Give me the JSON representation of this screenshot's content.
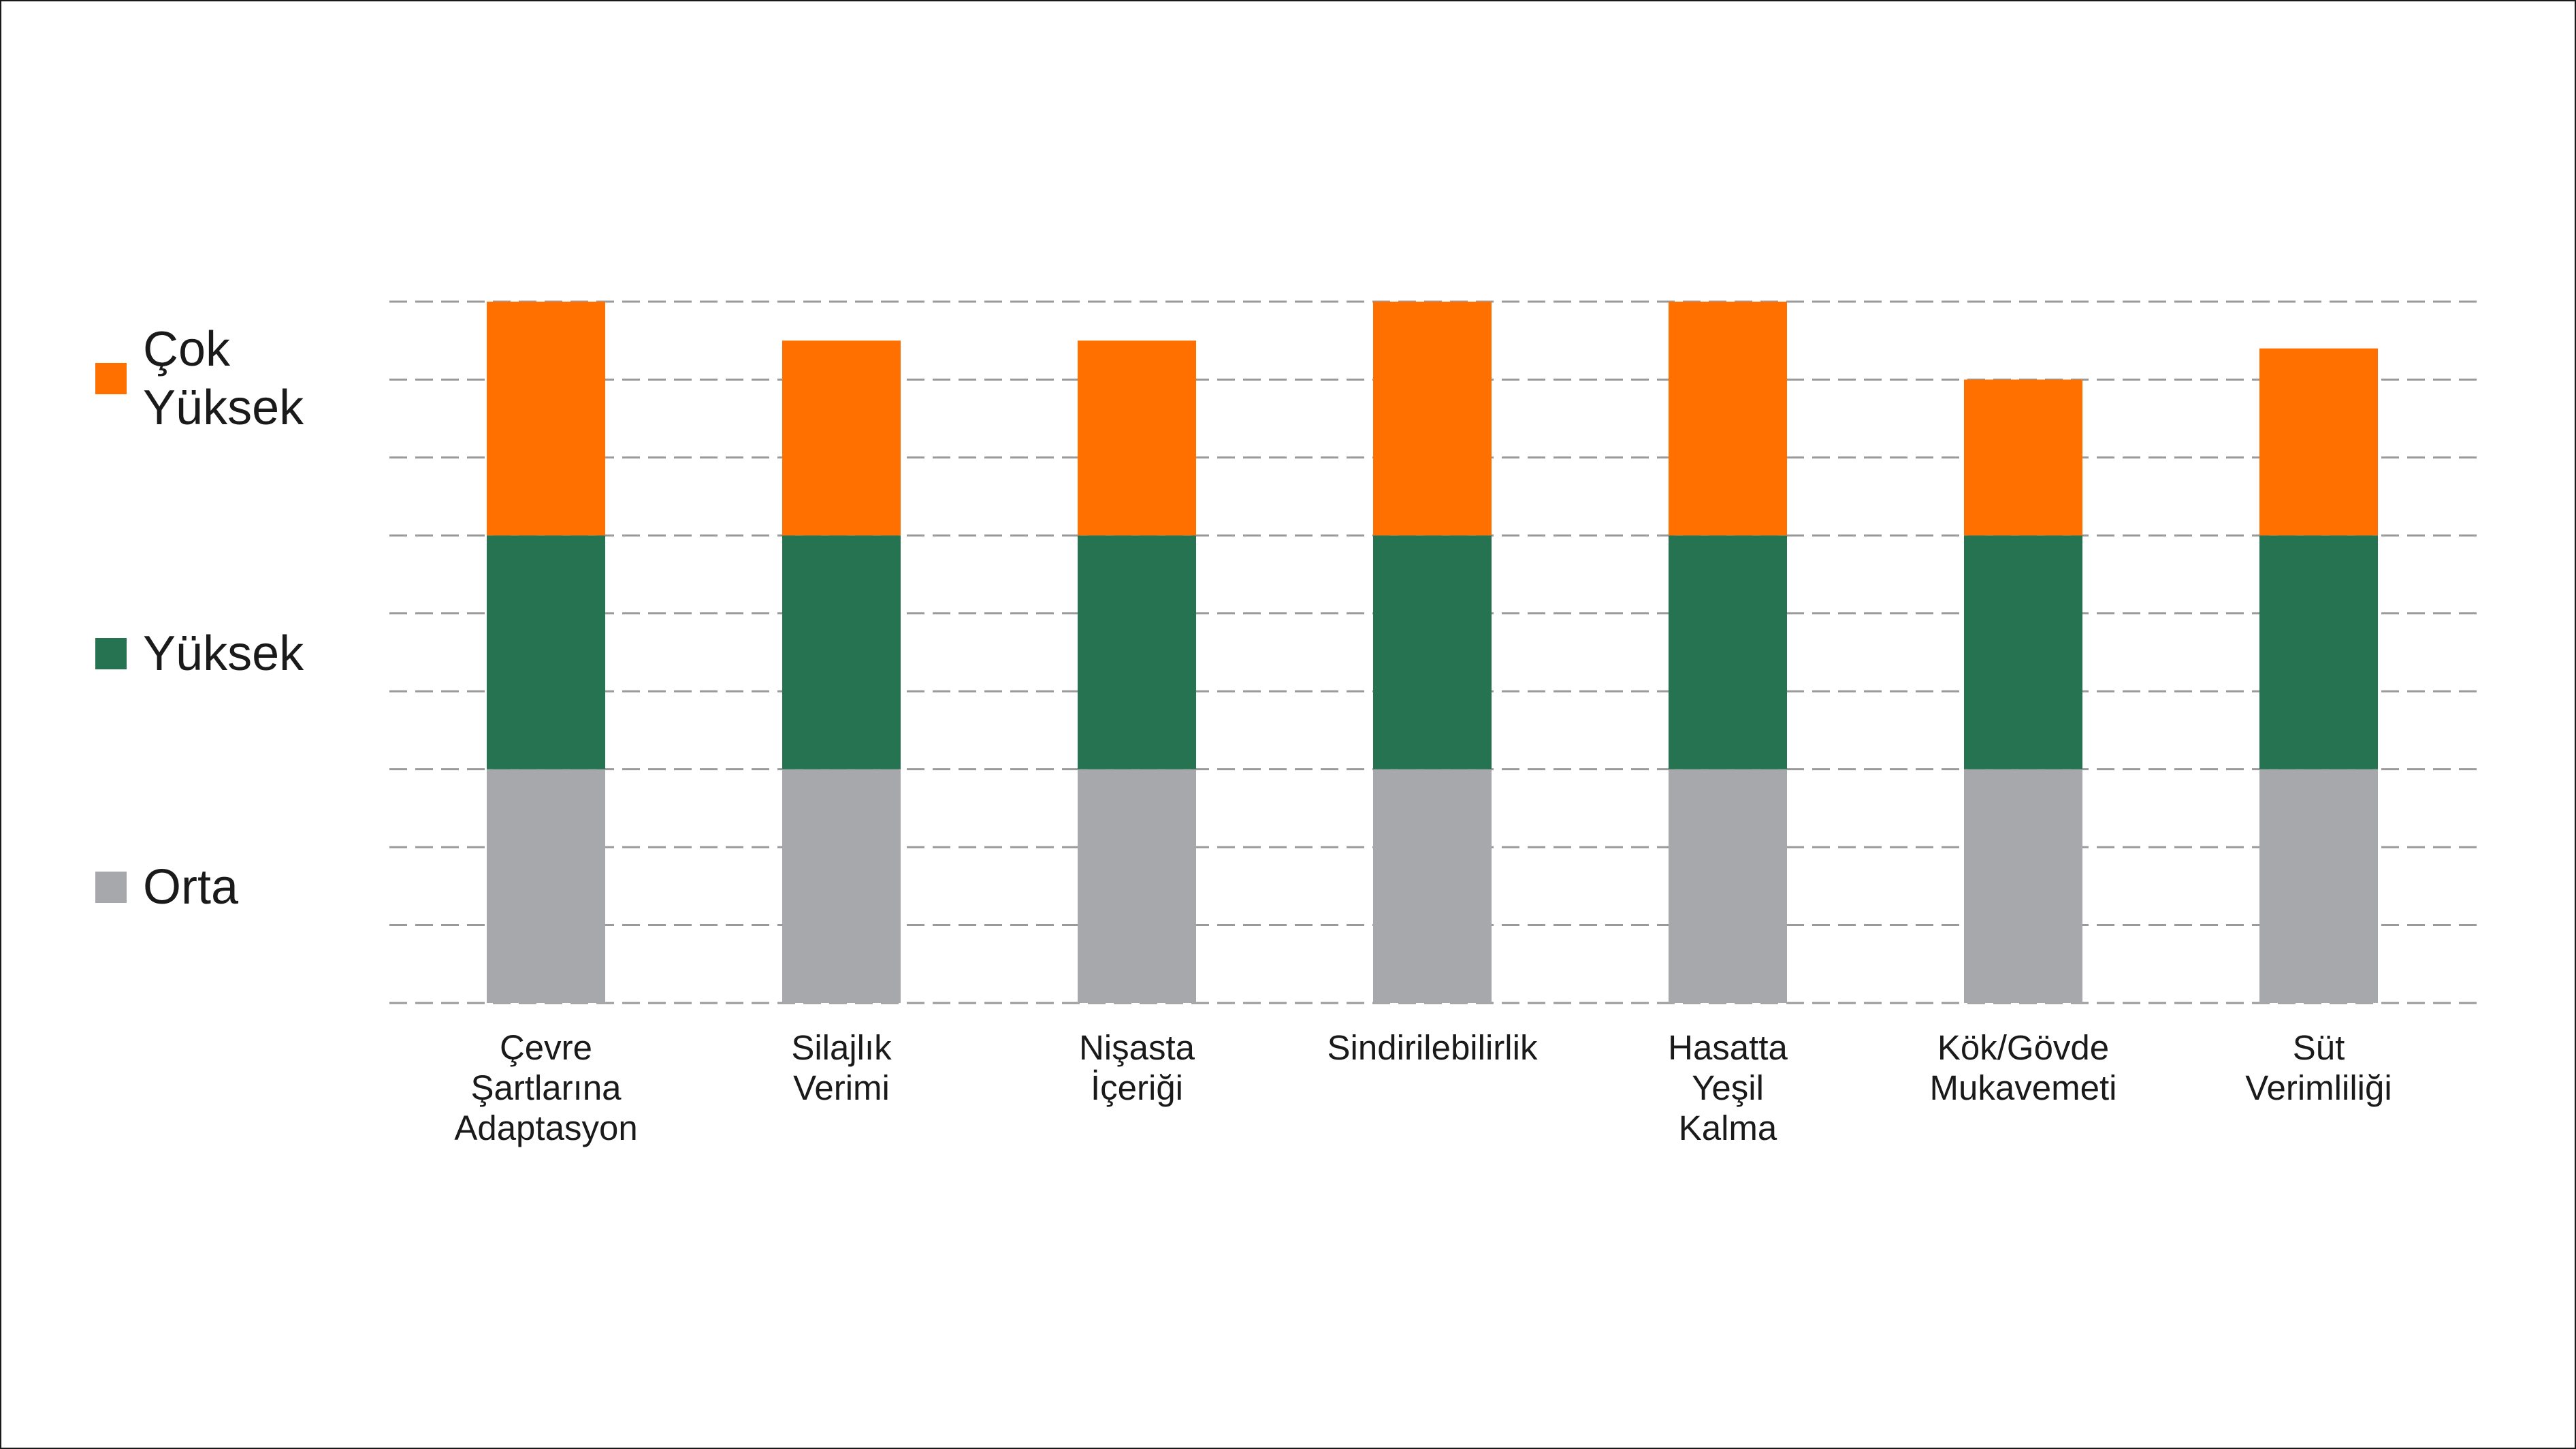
{
  "chart_data": {
    "type": "bar",
    "stacked": true,
    "categories": [
      "Çevre Şartlarına Adaptasyon",
      "Silajlık Verimi",
      "Nişasta İçeriği",
      "Sindirilebilirlik",
      "Hasatta Yeşil Kalma",
      "Kök/Gövde Mukavemeti",
      "Süt Verimliliği"
    ],
    "category_lines": [
      [
        "Çevre",
        "Şartlarına",
        "Adaptasyon"
      ],
      [
        "Silajlık",
        "Verimi"
      ],
      [
        "Nişasta",
        "İçeriği"
      ],
      [
        "Sindirilebilirlik"
      ],
      [
        "Hasatta",
        "Yeşil",
        "Kalma"
      ],
      [
        "Kök/Gövde",
        "Mukavemeti"
      ],
      [
        "Süt",
        "Verimliliği"
      ]
    ],
    "series": [
      {
        "name": "Orta",
        "color": "#a7a8ab",
        "values": [
          3,
          3,
          3,
          3,
          3,
          3,
          3
        ]
      },
      {
        "name": "Yüksek",
        "color": "#267352",
        "values": [
          3,
          3,
          3,
          3,
          3,
          3,
          3
        ]
      },
      {
        "name": "Çok Yüksek",
        "color": "#ff7000",
        "values": [
          3,
          2.5,
          2.5,
          3,
          3,
          2,
          2.4
        ]
      }
    ],
    "ylim": [
      0,
      9
    ],
    "grid": true,
    "grid_style": "dashed",
    "legend_position": "left",
    "title": "",
    "xlabel": "",
    "ylabel": ""
  },
  "legend": {
    "items": [
      {
        "label": "Çok\nYüksek",
        "color": "#ff7000"
      },
      {
        "label": "Yüksek",
        "color": "#267352"
      },
      {
        "label": "Orta",
        "color": "#a7a8ab"
      }
    ]
  }
}
